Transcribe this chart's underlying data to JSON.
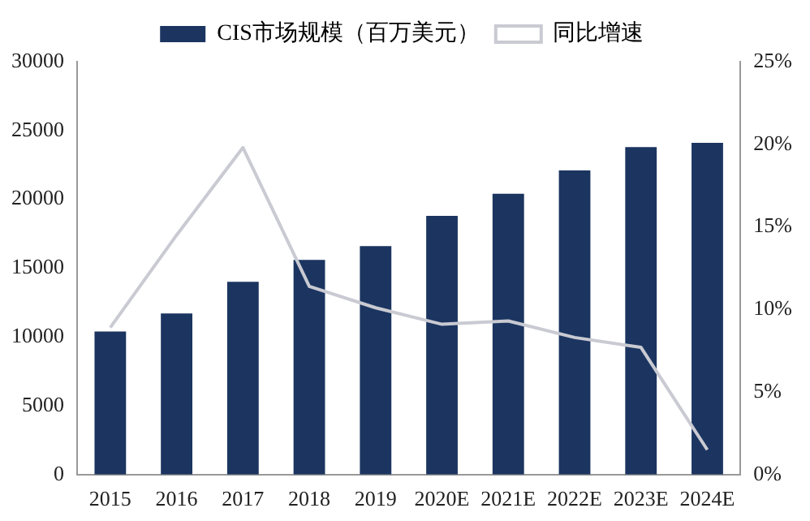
{
  "chart_data": {
    "type": "bar",
    "categories": [
      "2015",
      "2016",
      "2017",
      "2018",
      "2019",
      "2020E",
      "2021E",
      "2022E",
      "2023E",
      "2024E"
    ],
    "series": [
      {
        "name": "CIS市场规模（百万美元）",
        "color": "#1b3560",
        "values": [
          10400,
          11700,
          14000,
          15600,
          16600,
          18800,
          20400,
          22100,
          23800,
          24100
        ]
      },
      {
        "name": "同比增速",
        "type": "line",
        "axis": "y2",
        "color": "#c9cad2",
        "values": [
          8.9,
          14.5,
          19.8,
          11.4,
          10.1,
          9.1,
          9.3,
          8.3,
          7.7,
          1.5
        ]
      }
    ],
    "ylim": [
      0,
      30000
    ],
    "yticks": [
      0,
      5000,
      10000,
      15000,
      20000,
      25000,
      30000
    ],
    "y2lim": [
      0,
      25
    ],
    "y2ticks": [
      {
        "value": 0,
        "label": "0%"
      },
      {
        "value": 5,
        "label": "5%"
      },
      {
        "value": 10,
        "label": "10%"
      },
      {
        "value": 15,
        "label": "15%"
      },
      {
        "value": 20,
        "label": "20%"
      },
      {
        "value": 25,
        "label": "25%"
      }
    ],
    "grid": false,
    "legend": "top",
    "marker": "none"
  }
}
